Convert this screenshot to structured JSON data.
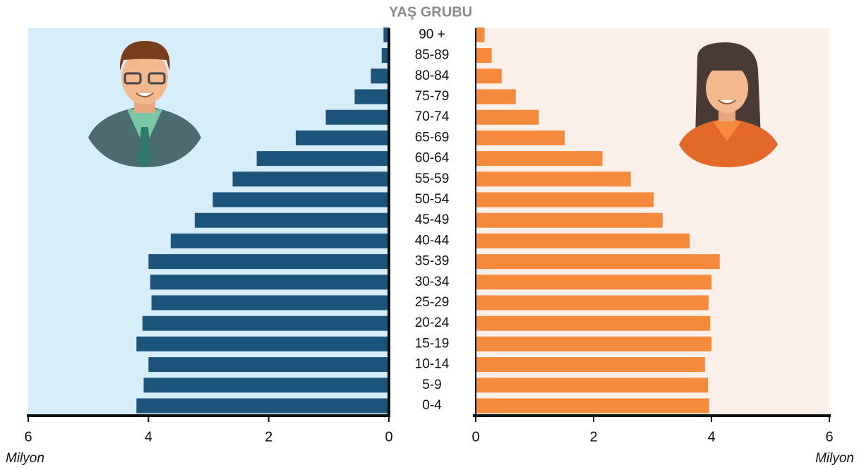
{
  "chart_data": {
    "type": "population-pyramid",
    "title": "YAŞ GRUBU",
    "xlabel": "Milyon",
    "categories": [
      "0-4",
      "5-9",
      "10-14",
      "15-19",
      "20-24",
      "25-29",
      "30-34",
      "35-39",
      "40-44",
      "45-49",
      "50-54",
      "55-59",
      "60-64",
      "65-69",
      "70-74",
      "75-79",
      "80-84",
      "85-89",
      "90 +"
    ],
    "series": [
      {
        "color": "#1d547b",
        "values": [
          4.2,
          4.08,
          4.0,
          4.2,
          4.1,
          3.95,
          3.97,
          4.0,
          3.63,
          3.23,
          2.93,
          2.6,
          2.2,
          1.55,
          1.05,
          0.57,
          0.3,
          0.12,
          0.09
        ]
      },
      {
        "color": "#f58a3d",
        "values": [
          3.96,
          3.94,
          3.89,
          4.0,
          3.98,
          3.95,
          4.0,
          4.14,
          3.63,
          3.17,
          3.02,
          2.63,
          2.15,
          1.51,
          1.07,
          0.68,
          0.44,
          0.27,
          0.15
        ]
      }
    ],
    "xlim": [
      0,
      6
    ],
    "xticks": [
      0,
      2,
      4,
      6
    ]
  }
}
